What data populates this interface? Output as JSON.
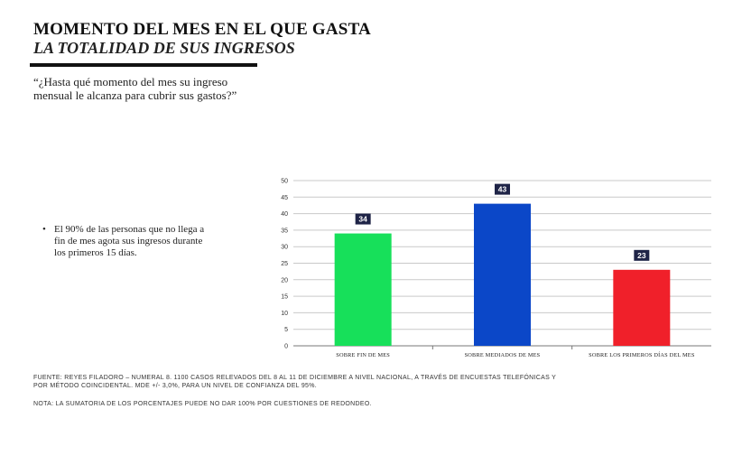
{
  "header": {
    "title": "MOMENTO DEL MES EN EL QUE GASTA",
    "subtitle": "LA TOTALIDAD DE SUS INGRESOS"
  },
  "question": "“¿Hasta qué momento del mes su ingreso mensual le alcanza para cubrir sus gastos?”",
  "bullet": {
    "symbol": "•",
    "text": "El 90% de las personas que no llega a fin de mes agota sus ingresos durante los primeros 15 días."
  },
  "chart_data": {
    "type": "bar",
    "categories": [
      "SOBRE FIN DE MES",
      "SOBRE MEDIADOS DE MES",
      "SOBRE LOS PRIMEROS DÍAS DEL MES"
    ],
    "values": [
      34,
      43,
      23
    ],
    "colors": [
      "#17e05a",
      "#0b47c8",
      "#f0202a"
    ],
    "data_label_bg": "#1f2447",
    "ylim": [
      0,
      50
    ],
    "yticks": [
      0,
      5,
      10,
      15,
      20,
      25,
      30,
      35,
      40,
      45,
      50
    ],
    "grid": true,
    "title": "",
    "xlabel": "",
    "ylabel": ""
  },
  "footer": {
    "source": "FUENTE: REYES FILADORO – NUMERAL 8. 1100 CASOS RELEVADOS DEL 8 AL 11 DE DICIEMBRE A NIVEL NACIONAL, A TRAVÉS DE ENCUESTAS TELEFÓNICAS Y POR MÉTODO COINCIDENTAL. MDE +/- 3,0%, PARA UN NIVEL DE CONFIANZA DEL 95%.",
    "note": "NOTA: LA SUMATORIA DE LOS PORCENTAJES PUEDE NO DAR 100% POR CUESTIONES DE REDONDEO."
  }
}
